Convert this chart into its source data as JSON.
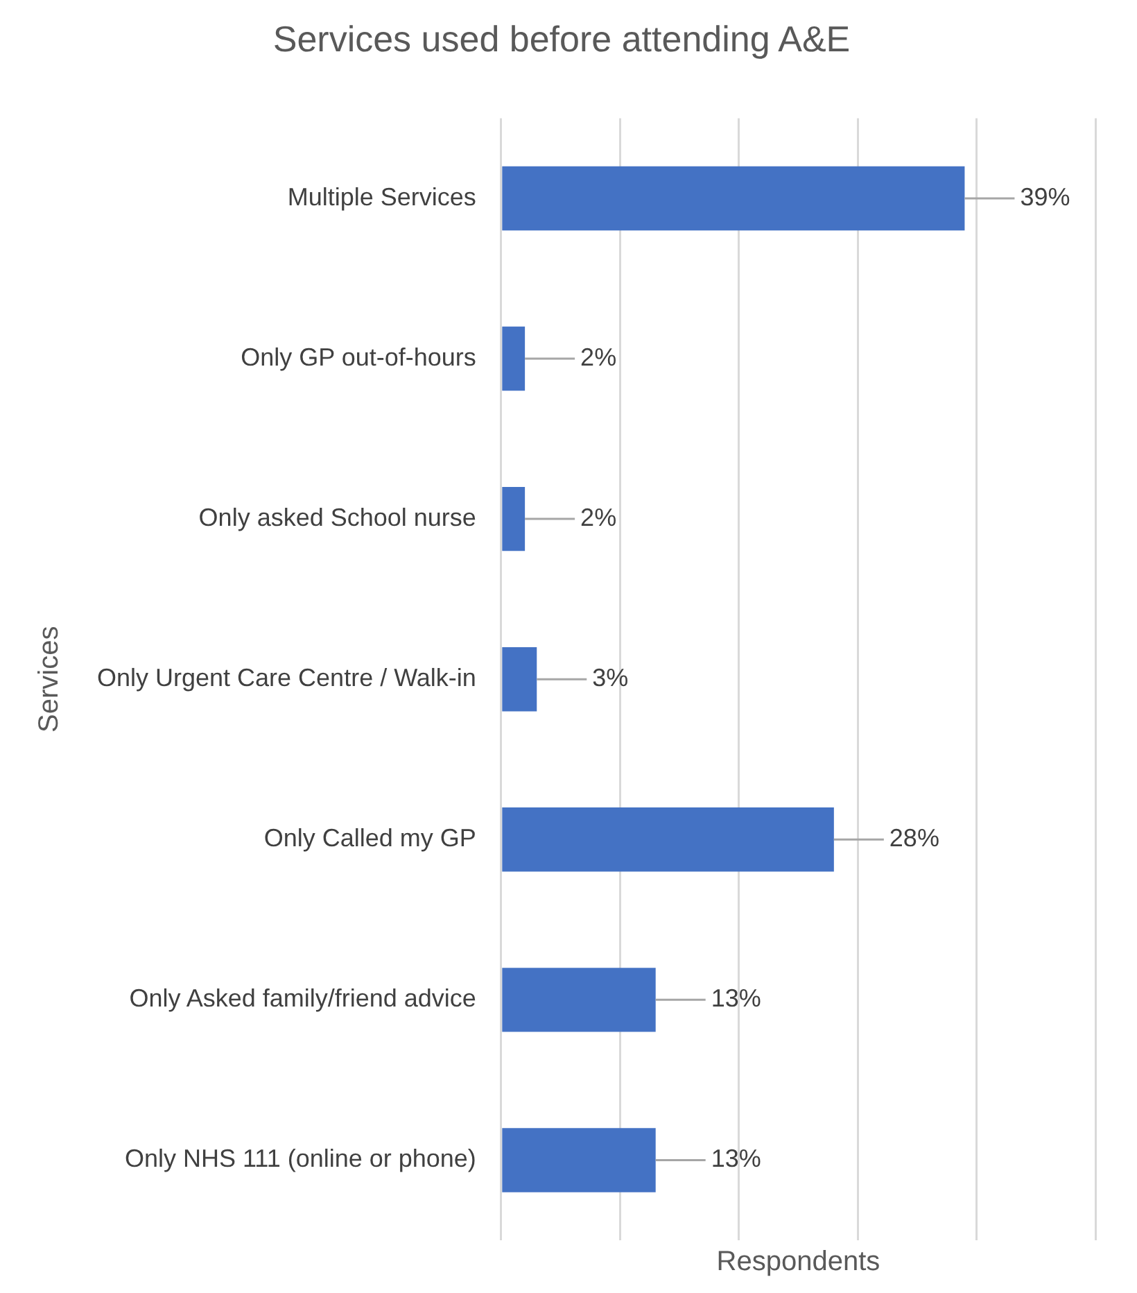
{
  "chart_data": {
    "type": "bar",
    "orientation": "horizontal",
    "title": "Services used before attending A&E",
    "xlabel": "Respondents",
    "ylabel": "Services",
    "categories": [
      "Multiple Services",
      "Only GP out-of-hours",
      "Only asked School nurse",
      "Only Urgent Care Centre / Walk-in",
      "Only Called my GP",
      "Only Asked family/friend advice",
      "Only NHS 111 (online or phone)"
    ],
    "values": [
      39,
      2,
      2,
      3,
      28,
      13,
      13
    ],
    "value_labels": [
      "39%",
      "2%",
      "2%",
      "3%",
      "28%",
      "13%",
      "13%"
    ],
    "color": "#4472c4",
    "xlim": [
      0,
      50
    ],
    "xticks": [
      {
        "value": 0,
        "label": null
      },
      {
        "value": 10,
        "label": null
      },
      {
        "value": 20,
        "label": null
      },
      {
        "value": 30,
        "label": null
      },
      {
        "value": 40,
        "label": null
      },
      {
        "value": 50,
        "label": null
      }
    ],
    "grid": "x",
    "legend": false,
    "tick_labels": "y"
  }
}
